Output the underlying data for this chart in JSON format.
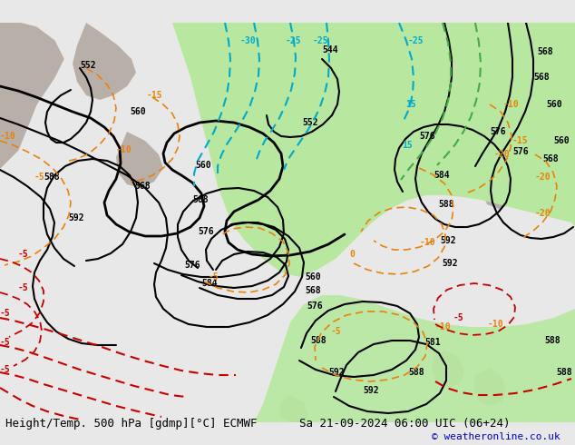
{
  "title_bottom_left": "Height/Temp. 500 hPa [gdmp][°C] ECMWF",
  "title_bottom_right": "Sa 21-09-2024 06:00 UIC (06+24)",
  "copyright": "© weatheronline.co.uk",
  "bg_color": "#e8e8e8",
  "map_bg_color": "#e0ddd8",
  "green_fill_color": "#b8e8a0",
  "contour_color_black": "#000000",
  "contour_color_orange": "#e8820a",
  "contour_color_red": "#cc0000",
  "contour_color_cyan": "#00aacc",
  "contour_color_green": "#44aa44",
  "label_color_black": "#000000",
  "label_color_orange": "#e8820a",
  "label_color_red": "#cc0000",
  "label_color_cyan": "#00aacc",
  "label_color_green": "#44aa44",
  "bottom_text_color": "#000000",
  "copyright_color": "#0000cc",
  "font_size_bottom": 9,
  "font_size_labels": 8
}
